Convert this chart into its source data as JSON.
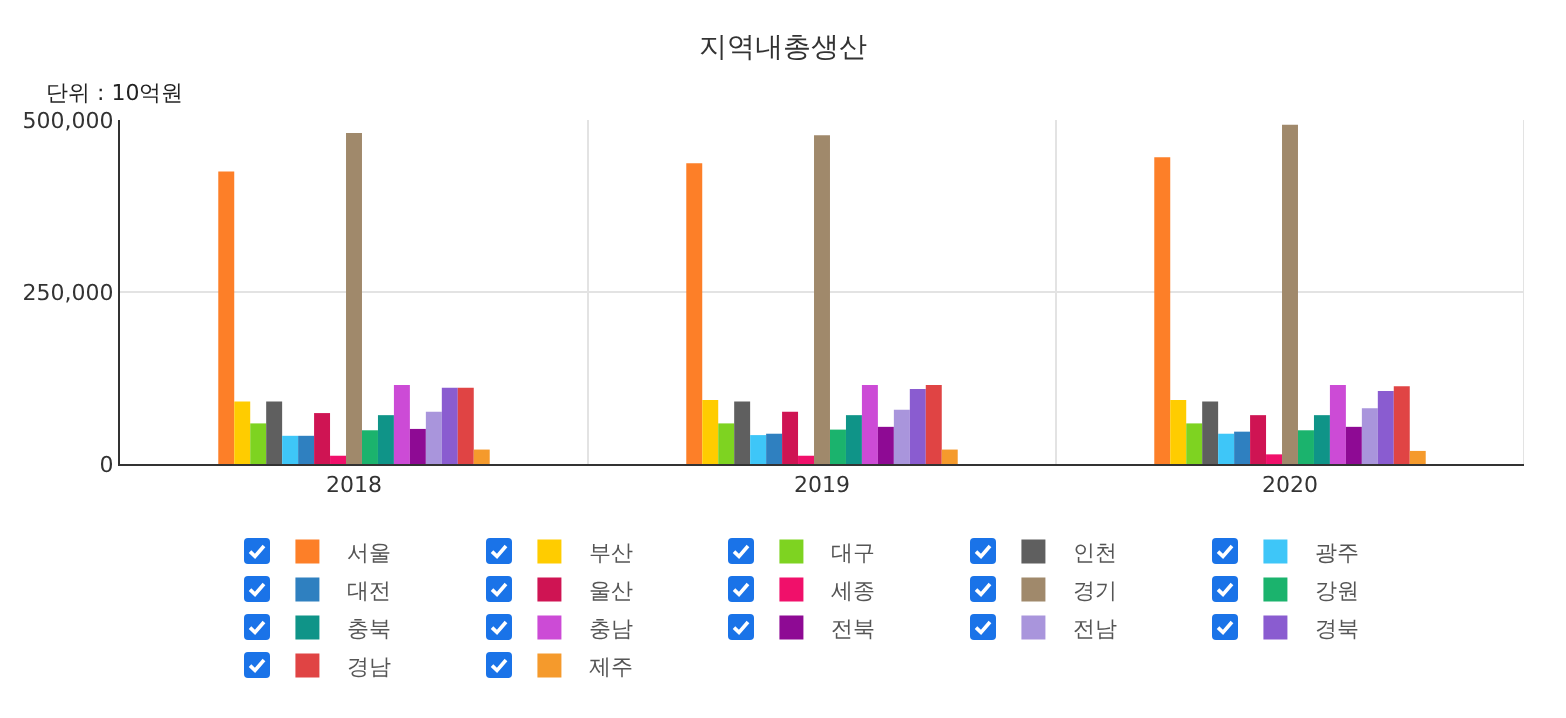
{
  "chart_data": {
    "type": "bar",
    "title": "지역내총생산",
    "annotations": [
      "단위 : 10억원"
    ],
    "categories": [
      "2018",
      "2019",
      "2020"
    ],
    "series": [
      {
        "name": "서울",
        "color": "#fd7f28",
        "values": [
          425000,
          437000,
          446000
        ]
      },
      {
        "name": "부산",
        "color": "#ffcc00",
        "values": [
          91000,
          93000,
          93000
        ]
      },
      {
        "name": "대구",
        "color": "#7ed321",
        "values": [
          59000,
          59000,
          59000
        ]
      },
      {
        "name": "인천",
        "color": "#5f5f5f",
        "values": [
          91000,
          91000,
          91000
        ]
      },
      {
        "name": "광주",
        "color": "#3ec6f8",
        "values": [
          41000,
          42000,
          44000
        ]
      },
      {
        "name": "대전",
        "color": "#2f80c0",
        "values": [
          41000,
          44000,
          47000
        ]
      },
      {
        "name": "울산",
        "color": "#cf1453",
        "values": [
          74000,
          76000,
          71000
        ]
      },
      {
        "name": "세종",
        "color": "#f0106a",
        "values": [
          12000,
          12000,
          14000
        ]
      },
      {
        "name": "경기",
        "color": "#a0896b",
        "values": [
          481000,
          478000,
          493000
        ]
      },
      {
        "name": "강원",
        "color": "#1bb36d",
        "values": [
          49000,
          50000,
          49000
        ]
      },
      {
        "name": "충북",
        "color": "#0f9488",
        "values": [
          71000,
          71000,
          71000
        ]
      },
      {
        "name": "충남",
        "color": "#cc4bd6",
        "values": [
          115000,
          115000,
          115000
        ]
      },
      {
        "name": "전북",
        "color": "#8e0a94",
        "values": [
          51000,
          54000,
          54000
        ]
      },
      {
        "name": "전남",
        "color": "#a995dc",
        "values": [
          76000,
          79000,
          81000
        ]
      },
      {
        "name": "경북",
        "color": "#8a5cd0",
        "values": [
          111000,
          109000,
          106000
        ]
      },
      {
        "name": "경남",
        "color": "#e04444",
        "values": [
          111000,
          115000,
          113000
        ]
      },
      {
        "name": "제주",
        "color": "#f59a2c",
        "values": [
          21000,
          21000,
          19000
        ]
      }
    ],
    "ylim": [
      0,
      500000
    ],
    "yticks": [
      0,
      {
        "value": 250000,
        "label": "250,000"
      },
      {
        "value": 500000,
        "label": "500,000"
      }
    ],
    "grid": true,
    "legend": "bottom"
  }
}
